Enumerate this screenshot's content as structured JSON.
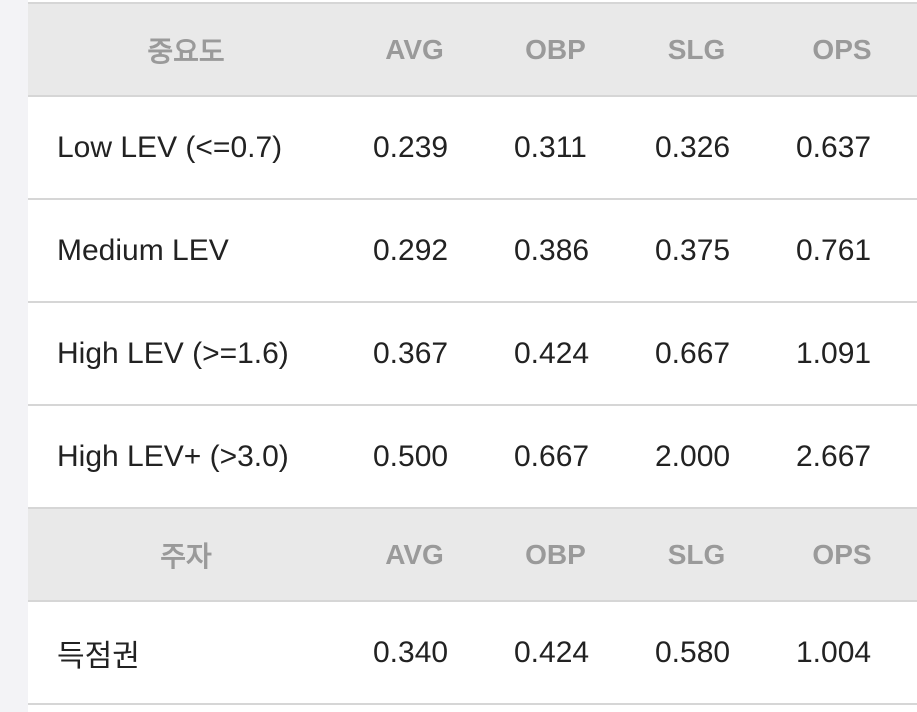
{
  "sections": [
    {
      "header": [
        "중요도",
        "AVG",
        "OBP",
        "SLG",
        "OPS"
      ],
      "rows": [
        [
          "Low LEV (<=0.7)",
          "0.239",
          "0.311",
          "0.326",
          "0.637"
        ],
        [
          "Medium LEV",
          "0.292",
          "0.386",
          "0.375",
          "0.761"
        ],
        [
          "High LEV (>=1.6)",
          "0.367",
          "0.424",
          "0.667",
          "1.091"
        ],
        [
          "High LEV+ (>3.0)",
          "0.500",
          "0.667",
          "2.000",
          "2.667"
        ]
      ]
    },
    {
      "header": [
        "주자",
        "AVG",
        "OBP",
        "SLG",
        "OPS"
      ],
      "rows": [
        [
          "득점권",
          "0.340",
          "0.424",
          "0.580",
          "1.004"
        ]
      ]
    }
  ]
}
